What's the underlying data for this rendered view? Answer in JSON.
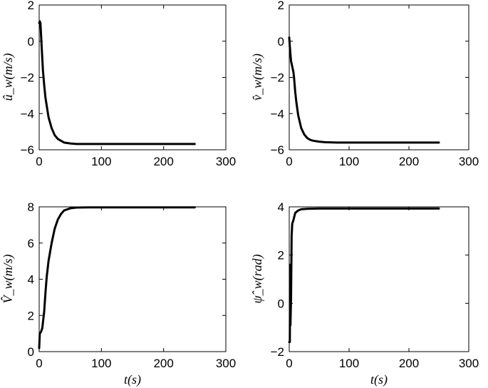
{
  "chart_data": [
    {
      "type": "line",
      "ylabel": "û_w(m/s)",
      "xlabel": "",
      "xlim": [
        0,
        300
      ],
      "ylim": [
        -6,
        2
      ],
      "xticks": [
        "0",
        "100",
        "200",
        "300"
      ],
      "yticks": [
        "−6",
        "−4",
        "−2",
        "0",
        "2"
      ],
      "ytick_values": [
        -6,
        -4,
        -2,
        0,
        2
      ],
      "grid": false,
      "series": [
        {
          "x": [
            0,
            1,
            2,
            4,
            6,
            8,
            10,
            15,
            20,
            25,
            30,
            35,
            40,
            50,
            60,
            80,
            100,
            150,
            200,
            250
          ],
          "y": [
            1.0,
            1.1,
            1.0,
            -0.3,
            -1.6,
            -2.4,
            -3.1,
            -4.2,
            -4.8,
            -5.2,
            -5.4,
            -5.5,
            -5.6,
            -5.65,
            -5.68,
            -5.68,
            -5.68,
            -5.68,
            -5.68,
            -5.68
          ]
        }
      ]
    },
    {
      "type": "line",
      "ylabel": "v̂_w(m/s)",
      "xlabel": "",
      "xlim": [
        0,
        300
      ],
      "ylim": [
        -6,
        2
      ],
      "xticks": [
        "0",
        "100",
        "200",
        "300"
      ],
      "yticks": [
        "−6",
        "−4",
        "−2",
        "0",
        "2"
      ],
      "ytick_values": [
        -6,
        -4,
        -2,
        0,
        2
      ],
      "grid": false,
      "series": [
        {
          "x": [
            0,
            1,
            2,
            3,
            5,
            7,
            8,
            10,
            12,
            15,
            20,
            25,
            30,
            35,
            40,
            50,
            60,
            80,
            100,
            150,
            200,
            250
          ],
          "y": [
            0.2,
            -0.3,
            -0.7,
            -1.1,
            -1.4,
            -1.7,
            -2.0,
            -2.8,
            -3.4,
            -4.1,
            -4.8,
            -5.15,
            -5.35,
            -5.45,
            -5.5,
            -5.55,
            -5.58,
            -5.6,
            -5.6,
            -5.6,
            -5.6,
            -5.6
          ]
        }
      ]
    },
    {
      "type": "line",
      "ylabel": "V̂_w(m/s)",
      "xlabel": "t(s)",
      "xlim": [
        0,
        300
      ],
      "ylim": [
        0,
        8
      ],
      "xticks": [
        "0",
        "100",
        "200",
        "300"
      ],
      "yticks": [
        "0",
        "2",
        "4",
        "6",
        "8"
      ],
      "ytick_values": [
        0,
        2,
        4,
        6,
        8
      ],
      "grid": false,
      "series": [
        {
          "x": [
            0,
            1,
            3,
            5,
            8,
            10,
            12,
            15,
            18,
            20,
            25,
            30,
            35,
            40,
            50,
            60,
            80,
            100,
            150,
            200,
            250
          ],
          "y": [
            0.2,
            1.0,
            1.1,
            1.3,
            2.2,
            3.2,
            4.1,
            5.0,
            5.6,
            6.0,
            6.8,
            7.3,
            7.6,
            7.8,
            7.92,
            7.96,
            7.97,
            7.97,
            7.97,
            7.97,
            7.97
          ]
        }
      ]
    },
    {
      "type": "line",
      "ylabel": "ψ̂_w(rad)",
      "xlabel": "t(s)",
      "xlim": [
        0,
        300
      ],
      "ylim": [
        -2,
        4
      ],
      "xticks": [
        "0",
        "100",
        "200",
        "300"
      ],
      "yticks": [
        "−2",
        "0",
        "2",
        "4"
      ],
      "ytick_values": [
        -2,
        0,
        2,
        4
      ],
      "grid": false,
      "series": [
        {
          "x": [
            0,
            1,
            1.5,
            2,
            3,
            4,
            5,
            7,
            10,
            15,
            20,
            30,
            50,
            100,
            150,
            200,
            250
          ],
          "y": [
            -1.6,
            -1.6,
            1.6,
            -0.9,
            0.2,
            2.8,
            3.3,
            3.45,
            3.75,
            3.85,
            3.9,
            3.92,
            3.93,
            3.93,
            3.93,
            3.93,
            3.93
          ]
        }
      ]
    }
  ]
}
